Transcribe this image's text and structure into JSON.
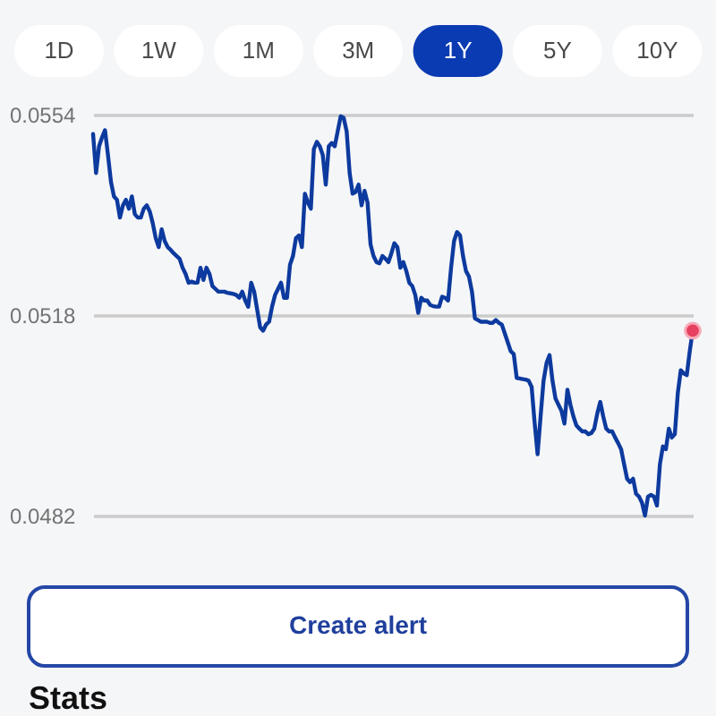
{
  "chart_data": {
    "type": "line",
    "categories": [
      null,
      null,
      null,
      null,
      null,
      null,
      null,
      null,
      null,
      null,
      null,
      null,
      null,
      null,
      null,
      null,
      null,
      null,
      null,
      null,
      null,
      null,
      null,
      null,
      null,
      null,
      null,
      null,
      null,
      null,
      null,
      null,
      null,
      null,
      null,
      null,
      null,
      null,
      null,
      null,
      null,
      null,
      null,
      null,
      null,
      null,
      null,
      null,
      null,
      null,
      null,
      null,
      null,
      null,
      null,
      null,
      null,
      null,
      null,
      null,
      null,
      null,
      null,
      null,
      null,
      null,
      null,
      null,
      null,
      null,
      null,
      null,
      null,
      null,
      null,
      null,
      null,
      null,
      null,
      null,
      null,
      null,
      null,
      null,
      null,
      null,
      null,
      null,
      null,
      null,
      null,
      null,
      null,
      null,
      null,
      null,
      null,
      null,
      null,
      null,
      null,
      null,
      null,
      null,
      null,
      null,
      null,
      null,
      null,
      null,
      null,
      null,
      null,
      null,
      null,
      null,
      null,
      null,
      null,
      null,
      null,
      null,
      null,
      null,
      null,
      null,
      null,
      null,
      null,
      null,
      null,
      null,
      null,
      null,
      null,
      null,
      null,
      null,
      null,
      null,
      null,
      null,
      null,
      null,
      null,
      null,
      null,
      null,
      null,
      null,
      null,
      null,
      null,
      null,
      null,
      null,
      null,
      null,
      null,
      null,
      null,
      null,
      null,
      null,
      null,
      null,
      null,
      null,
      null,
      null,
      null,
      null,
      null,
      null,
      null,
      null,
      null,
      null,
      null,
      null,
      null,
      null,
      null,
      null,
      null,
      null,
      null,
      null,
      null,
      null,
      null,
      null,
      null,
      null,
      null,
      null,
      null,
      null,
      null,
      null,
      null,
      null
    ],
    "series": [
      {
        "color": "#0d3a9e",
        "values": [
          0.05505,
          0.05435,
          0.05483,
          0.05499,
          0.05512,
          0.05467,
          0.05419,
          0.05393,
          0.05387,
          0.05355,
          0.05377,
          0.05387,
          0.05371,
          0.05393,
          0.05361,
          0.05355,
          0.05355,
          0.05371,
          0.05377,
          0.05366,
          0.05345,
          0.05318,
          0.05302,
          0.05334,
          0.05313,
          0.05302,
          0.05297,
          0.05291,
          0.05286,
          0.05281,
          0.05265,
          0.05254,
          0.05238,
          0.0524,
          0.05238,
          0.05238,
          0.05265,
          0.05243,
          0.05265,
          0.05254,
          0.05232,
          0.05227,
          0.05222,
          0.05222,
          0.05222,
          0.0522,
          0.05219,
          0.05218,
          0.05216,
          0.05211,
          0.05222,
          0.05206,
          0.05195,
          0.05238,
          0.05222,
          0.0519,
          0.05158,
          0.05152,
          0.05163,
          0.05168,
          0.05195,
          0.05216,
          0.05227,
          0.05238,
          0.05211,
          0.05211,
          0.0527,
          0.05286,
          0.05318,
          0.05323,
          0.05302,
          0.05398,
          0.05382,
          0.05371,
          0.05478,
          0.05491,
          0.05483,
          0.05467,
          0.05414,
          0.05483,
          0.05489,
          0.05483,
          0.0551,
          0.05537,
          0.05534,
          0.0551,
          0.05435,
          0.05398,
          0.05401,
          0.05414,
          0.05377,
          0.05403,
          0.05382,
          0.05307,
          0.05286,
          0.05275,
          0.05273,
          0.05286,
          0.05281,
          0.05275,
          0.05291,
          0.05309,
          0.05302,
          0.05265,
          0.05275,
          0.05259,
          0.05238,
          0.05232,
          0.05216,
          0.05184,
          0.05211,
          0.05206,
          0.05206,
          0.05198,
          0.05196,
          0.05195,
          0.05195,
          0.05213,
          0.05211,
          0.05206,
          0.05265,
          0.05313,
          0.05329,
          0.05323,
          0.05286,
          0.05259,
          0.05249,
          0.05222,
          0.05174,
          0.05171,
          0.05168,
          0.05168,
          0.05168,
          0.05166,
          0.05166,
          0.05171,
          0.05166,
          0.05163,
          0.05147,
          0.05131,
          0.05115,
          0.0511,
          0.05067,
          0.05066,
          0.05065,
          0.05064,
          0.05062,
          0.05051,
          0.04987,
          0.0493,
          0.04998,
          0.05062,
          0.05094,
          0.05108,
          0.05062,
          0.0503,
          0.05019,
          0.05008,
          0.04985,
          0.05046,
          0.05019,
          0.04998,
          0.04982,
          0.04976,
          0.04971,
          0.04971,
          0.04966,
          0.04968,
          0.04976,
          0.05003,
          0.05024,
          0.04998,
          0.04976,
          0.04971,
          0.04971,
          0.0496,
          0.0495,
          0.04939,
          0.04912,
          0.04886,
          0.0488,
          0.04886,
          0.04859,
          0.04854,
          0.04843,
          0.0482,
          0.04854,
          0.04857,
          0.04854,
          0.04838,
          0.04912,
          0.04944,
          0.04939,
          0.04976,
          0.0496,
          0.04966,
          0.0504,
          0.05081,
          0.05075,
          0.05072,
          0.05115,
          0.05152
        ]
      },
      {
        "type": "scatter",
        "marker": "circle",
        "color": "#e8405f",
        "values": [
          null,
          null,
          null,
          null,
          null,
          null,
          null,
          null,
          null,
          null,
          null,
          null,
          null,
          null,
          null,
          null,
          null,
          null,
          null,
          null,
          null,
          null,
          null,
          null,
          null,
          null,
          null,
          null,
          null,
          null,
          null,
          null,
          null,
          null,
          null,
          null,
          null,
          null,
          null,
          null,
          null,
          null,
          null,
          null,
          null,
          null,
          null,
          null,
          null,
          null,
          null,
          null,
          null,
          null,
          null,
          null,
          null,
          null,
          null,
          null,
          null,
          null,
          null,
          null,
          null,
          null,
          null,
          null,
          null,
          null,
          null,
          null,
          null,
          null,
          null,
          null,
          null,
          null,
          null,
          null,
          null,
          null,
          null,
          null,
          null,
          null,
          null,
          null,
          null,
          null,
          null,
          null,
          null,
          null,
          null,
          null,
          null,
          null,
          null,
          null,
          null,
          null,
          null,
          null,
          null,
          null,
          null,
          null,
          null,
          null,
          null,
          null,
          null,
          null,
          null,
          null,
          null,
          null,
          null,
          null,
          null,
          null,
          null,
          null,
          null,
          null,
          null,
          null,
          null,
          null,
          null,
          null,
          null,
          null,
          null,
          null,
          null,
          null,
          null,
          null,
          null,
          null,
          null,
          null,
          null,
          null,
          null,
          null,
          null,
          null,
          null,
          null,
          null,
          null,
          null,
          null,
          null,
          null,
          null,
          null,
          null,
          null,
          null,
          null,
          null,
          null,
          null,
          null,
          null,
          null,
          null,
          null,
          null,
          null,
          null,
          null,
          null,
          null,
          null,
          null,
          null,
          null,
          null,
          null,
          null,
          null,
          null,
          null,
          null,
          null,
          null,
          null,
          null,
          null,
          null,
          null,
          null,
          null,
          null,
          null,
          null,
          0.05152
        ]
      }
    ],
    "ylim": [
      0.0482,
      0.0554
    ],
    "yticks": [
      0.0482,
      0.0518,
      0.0554
    ],
    "grid": "y",
    "tick_labels": "y",
    "annotations": [
      "1D",
      "1W",
      "1M",
      "3M",
      "1Y",
      "5Y",
      "10Y",
      "Create alert",
      "Stats"
    ]
  }
}
